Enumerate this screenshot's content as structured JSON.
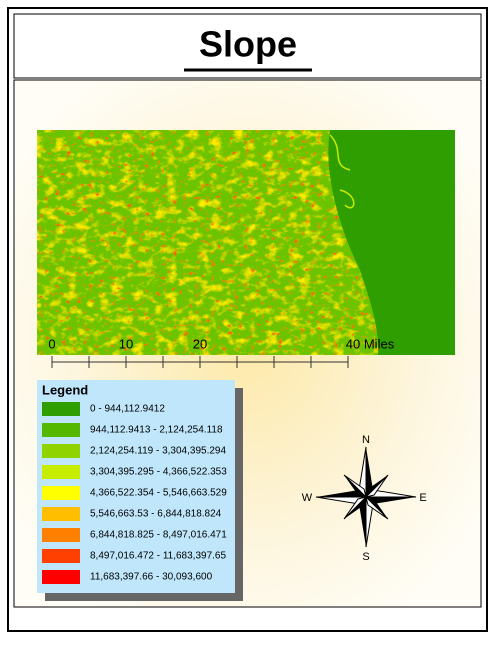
{
  "header": {
    "title": "Slope"
  },
  "scale_bar": {
    "labels": [
      "0",
      "10",
      "20",
      "40 Miles"
    ]
  },
  "legend": {
    "title": "Legend",
    "items": [
      {
        "label": "0 - 944,112.9412",
        "color": "#2f9e00"
      },
      {
        "label": "944,112.9413 - 2,124,254.118",
        "color": "#55b800"
      },
      {
        "label": "2,124,254.119 - 3,304,395.294",
        "color": "#8fd400"
      },
      {
        "label": "3,304,395.295 - 4,366,522.353",
        "color": "#c8ec00"
      },
      {
        "label": "4,366,522.354 - 5,546,663.529",
        "color": "#ffff00"
      },
      {
        "label": "5,546,663.53 - 6,844,818.824",
        "color": "#ffbf00"
      },
      {
        "label": "6,844,818.825 - 8,497,016.471",
        "color": "#ff8000"
      },
      {
        "label": "8,497,016.472 - 11,683,397.65",
        "color": "#ff4000"
      },
      {
        "label": "11,683,397.66 - 30,093,600",
        "color": "#ff0000"
      }
    ]
  },
  "north_arrow": {
    "n": "N",
    "e": "E",
    "s": "S",
    "w": "W"
  }
}
